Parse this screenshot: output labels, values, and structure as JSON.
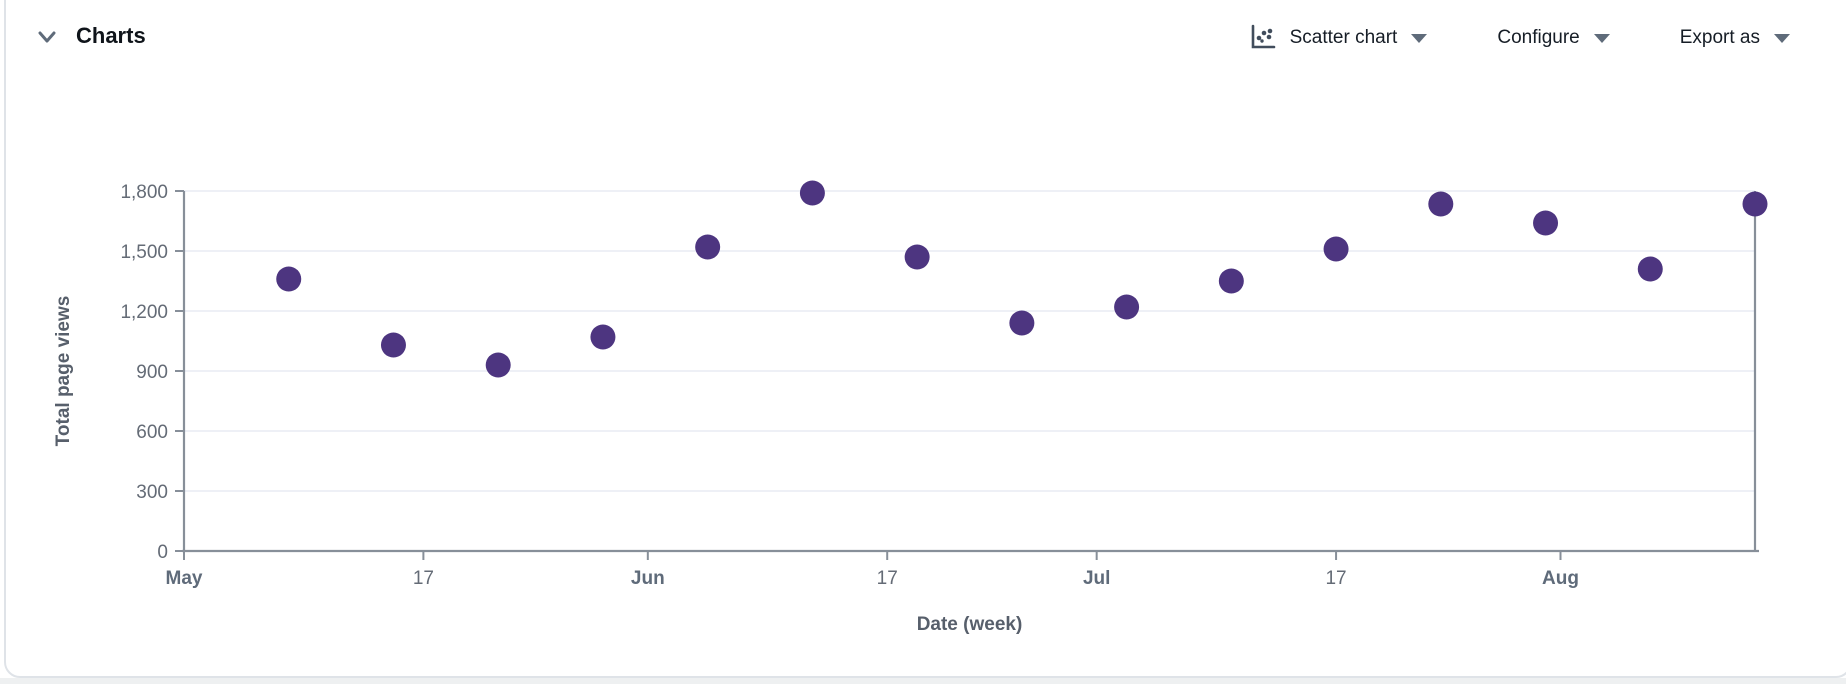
{
  "panel": {
    "title": "Charts",
    "controls": {
      "chart_type_label": "Scatter chart",
      "configure_label": "Configure",
      "export_label": "Export as"
    }
  },
  "colors": {
    "point": "#4d3580",
    "axis": "#878f99",
    "grid": "#e8ebf4",
    "tick_text": "#646b76",
    "accent_text": "#161d26"
  },
  "chart_data": {
    "type": "scatter",
    "title": "",
    "xlabel": "Date (week)",
    "ylabel": "Total page views",
    "ylim": [
      0,
      1800
    ],
    "grid": true,
    "legend": "none",
    "y_ticks": [
      {
        "value": 0,
        "label": "0"
      },
      {
        "value": 300,
        "label": "300"
      },
      {
        "value": 600,
        "label": "600"
      },
      {
        "value": 900,
        "label": "900"
      },
      {
        "value": 1200,
        "label": "1,200"
      },
      {
        "value": 1500,
        "label": "1,500"
      },
      {
        "value": 1800,
        "label": "1,800"
      }
    ],
    "x_axis_unit": "days from May 1",
    "x_domain_days": [
      0,
      105
    ],
    "x_ticks": [
      {
        "label": "May",
        "day": 0,
        "emphasis": true
      },
      {
        "label": "17",
        "day": 16,
        "emphasis": false
      },
      {
        "label": "Jun",
        "day": 31,
        "emphasis": true
      },
      {
        "label": "17",
        "day": 47,
        "emphasis": false
      },
      {
        "label": "Jul",
        "day": 61,
        "emphasis": true
      },
      {
        "label": "17",
        "day": 77,
        "emphasis": false
      },
      {
        "label": "Aug",
        "day": 92,
        "emphasis": true
      }
    ],
    "series": [
      {
        "name": "Total page views",
        "color": "#4d3580",
        "points": [
          {
            "day": 7,
            "value": 1360
          },
          {
            "day": 14,
            "value": 1030
          },
          {
            "day": 21,
            "value": 930
          },
          {
            "day": 28,
            "value": 1070
          },
          {
            "day": 35,
            "value": 1520
          },
          {
            "day": 42,
            "value": 1790
          },
          {
            "day": 49,
            "value": 1470
          },
          {
            "day": 56,
            "value": 1140
          },
          {
            "day": 63,
            "value": 1220
          },
          {
            "day": 70,
            "value": 1350
          },
          {
            "day": 77,
            "value": 1510
          },
          {
            "day": 84,
            "value": 1735
          },
          {
            "day": 91,
            "value": 1640
          },
          {
            "day": 98,
            "value": 1410
          },
          {
            "day": 105,
            "value": 1735
          }
        ]
      }
    ]
  }
}
